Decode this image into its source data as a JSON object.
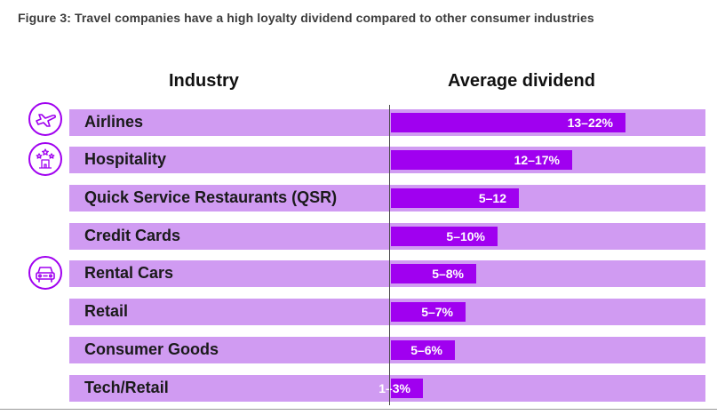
{
  "figure_title": "Figure 3: Travel companies have a high loyalty dividend compared to other consumer industries",
  "colors": {
    "band": "#d09bf2",
    "bar": "#a000f0",
    "bar_text": "#ffffff"
  },
  "chart_data": {
    "type": "bar",
    "orientation": "horizontal",
    "column_headers": [
      "Industry",
      "Average dividend"
    ],
    "categories": [
      "Airlines",
      "Hospitality",
      "Quick Service Restaurants (QSR)",
      "Credit Cards",
      "Rental Cars",
      "Retail",
      "Consumer Goods",
      "Tech/Retail"
    ],
    "value_labels": [
      "13–22%",
      "12–17%",
      "5–12",
      "5–10%",
      "5–8%",
      "5–7%",
      "5–6%",
      "1–3%"
    ],
    "ranges": [
      [
        13,
        22
      ],
      [
        12,
        17
      ],
      [
        5,
        12
      ],
      [
        5,
        10
      ],
      [
        5,
        8
      ],
      [
        5,
        7
      ],
      [
        5,
        6
      ],
      [
        1,
        3
      ]
    ],
    "unit": "%",
    "xlim": [
      0,
      25
    ],
    "grid": false,
    "legend": "none",
    "icons": {
      "Airlines": "airplane-icon",
      "Hospitality": "hotel-stars-icon",
      "Rental Cars": "car-icon"
    }
  }
}
